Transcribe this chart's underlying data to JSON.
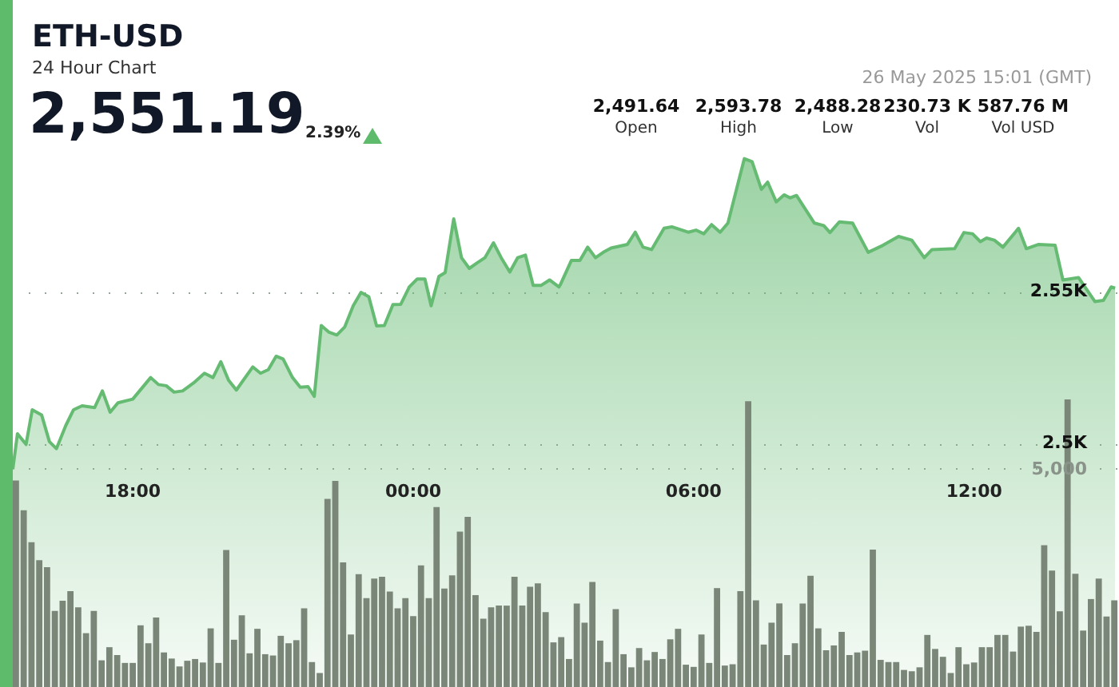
{
  "chart_data": {
    "type": "area",
    "title": "ETH-USD",
    "subtitle": "24 Hour Chart",
    "annotations": [
      "2,551.19",
      "2.39%",
      "26 May 2025 15:01 (GMT)",
      "2,491.64",
      "Open",
      "2,593.78",
      "High",
      "2,488.28",
      "Low",
      "230.73 K",
      "Vol",
      "587.76 M",
      "Vol USD"
    ],
    "xlim": [
      "2025-05-25T15:26",
      "2025-05-26T15:06"
    ],
    "xticks": [
      {
        "value": "2025-05-25T18:00",
        "label": "18:00"
      },
      {
        "value": "2025-05-26T00:00",
        "label": "00:00"
      },
      {
        "value": "2025-05-26T06:00",
        "label": "06:00"
      },
      {
        "value": "2025-05-26T12:00",
        "label": "12:00"
      }
    ],
    "ylim": [
      2420,
      2646
    ],
    "yticks": [
      {
        "value": 2500,
        "label": "2.5K"
      },
      {
        "value": 2550,
        "label": "2.55K"
      }
    ],
    "y2lim": [
      0,
      15700
    ],
    "y2ticks": [
      {
        "value": 5000,
        "label": "5,000"
      }
    ],
    "grid": "y",
    "series": [
      {
        "color": "#66bb73",
        "x": [
          "2025-05-25T15:26",
          "2025-05-25T15:32",
          "2025-05-25T15:43",
          "2025-05-25T15:51",
          "2025-05-25T16:03",
          "2025-05-25T16:13",
          "2025-05-25T16:22",
          "2025-05-25T16:34",
          "2025-05-25T16:44",
          "2025-05-25T16:55",
          "2025-05-25T17:11",
          "2025-05-25T17:21",
          "2025-05-25T17:31",
          "2025-05-25T17:41",
          "2025-05-25T18:00",
          "2025-05-25T18:23",
          "2025-05-25T18:33",
          "2025-05-25T18:43",
          "2025-05-25T18:53",
          "2025-05-25T19:04",
          "2025-05-25T19:18",
          "2025-05-25T19:32",
          "2025-05-25T19:43",
          "2025-05-25T19:53",
          "2025-05-25T20:03",
          "2025-05-25T20:13",
          "2025-05-25T20:34",
          "2025-05-25T20:44",
          "2025-05-25T20:54",
          "2025-05-25T21:04",
          "2025-05-25T21:13",
          "2025-05-25T21:25",
          "2025-05-25T21:35",
          "2025-05-25T21:45",
          "2025-05-25T21:53",
          "2025-05-25T22:02",
          "2025-05-25T22:12",
          "2025-05-25T22:22",
          "2025-05-25T22:32",
          "2025-05-25T22:43",
          "2025-05-25T22:53",
          "2025-05-25T23:03",
          "2025-05-25T23:13",
          "2025-05-25T23:23",
          "2025-05-25T23:34",
          "2025-05-25T23:44",
          "2025-05-25T23:55",
          "2025-05-26T00:05",
          "2025-05-26T00:15",
          "2025-05-26T00:23",
          "2025-05-26T00:33",
          "2025-05-26T00:41",
          "2025-05-26T00:52",
          "2025-05-26T01:02",
          "2025-05-26T01:12",
          "2025-05-26T01:22",
          "2025-05-26T01:32",
          "2025-05-26T01:43",
          "2025-05-26T01:53",
          "2025-05-26T02:04",
          "2025-05-26T02:14",
          "2025-05-26T02:24",
          "2025-05-26T02:34",
          "2025-05-26T02:44",
          "2025-05-26T02:55",
          "2025-05-26T03:07",
          "2025-05-26T03:09",
          "2025-05-26T03:23",
          "2025-05-26T03:34",
          "2025-05-26T03:44",
          "2025-05-26T03:54",
          "2025-05-26T04:04",
          "2025-05-26T04:14",
          "2025-05-26T04:35",
          "2025-05-26T04:45",
          "2025-05-26T04:55",
          "2025-05-26T05:06",
          "2025-05-26T05:22",
          "2025-05-26T05:32",
          "2025-05-26T05:53",
          "2025-05-26T06:03",
          "2025-05-26T06:13",
          "2025-05-26T06:23",
          "2025-05-26T06:34",
          "2025-05-26T06:44",
          "2025-05-26T07:05",
          "2025-05-26T07:15",
          "2025-05-26T07:27",
          "2025-05-26T07:35",
          "2025-05-26T07:46",
          "2025-05-26T07:56",
          "2025-05-26T08:04",
          "2025-05-26T08:12",
          "2025-05-26T08:35",
          "2025-05-26T08:47",
          "2025-05-26T08:55",
          "2025-05-26T09:07",
          "2025-05-26T09:24",
          "2025-05-26T09:44",
          "2025-05-26T10:03",
          "2025-05-26T10:23",
          "2025-05-26T10:40",
          "2025-05-26T10:56",
          "2025-05-26T11:06",
          "2025-05-26T11:35",
          "2025-05-26T11:47",
          "2025-05-26T11:58",
          "2025-05-26T12:08",
          "2025-05-26T12:16",
          "2025-05-26T12:26",
          "2025-05-26T12:37",
          "2025-05-26T12:57",
          "2025-05-26T13:07",
          "2025-05-26T13:23",
          "2025-05-26T13:44",
          "2025-05-26T13:54",
          "2025-05-26T14:14",
          "2025-05-26T14:35",
          "2025-05-26T14:46",
          "2025-05-26T14:56",
          "2025-05-26T15:01"
        ],
        "values": [
          2491.6,
          2503.3,
          2499.8,
          2511.2,
          2509.5,
          2500.7,
          2498.4,
          2506,
          2511.2,
          2512.5,
          2511.9,
          2517.4,
          2510.4,
          2513.5,
          2514.7,
          2521.8,
          2519.5,
          2519.1,
          2517,
          2517.4,
          2520,
          2523.2,
          2521.8,
          2527,
          2520.9,
          2517.7,
          2525.3,
          2523.2,
          2524.4,
          2528.8,
          2527.9,
          2521.8,
          2518.6,
          2518.8,
          2515.6,
          2538.9,
          2536.7,
          2535.8,
          2538.4,
          2545.4,
          2549.8,
          2548.4,
          2538.8,
          2538.9,
          2545.8,
          2545.9,
          2551.6,
          2554.2,
          2554.2,
          2545.4,
          2555.1,
          2556.3,
          2574,
          2561.2,
          2557.7,
          2559.5,
          2561.2,
          2566.1,
          2561.2,
          2556.5,
          2561.2,
          2562.1,
          2552.1,
          2552.1,
          2553.9,
          2551.6,
          2552.4,
          2560.3,
          2560.3,
          2564.7,
          2561.2,
          2563,
          2564.4,
          2565.6,
          2569.6,
          2564.7,
          2563.9,
          2570.9,
          2571.4,
          2569.6,
          2570.3,
          2569.1,
          2572.1,
          2569.6,
          2572.6,
          2593.8,
          2592.8,
          2583.7,
          2586.1,
          2579.6,
          2581.9,
          2580.9,
          2581.7,
          2572.6,
          2571.8,
          2569.5,
          2573,
          2572.6,
          2563,
          2565.3,
          2568.2,
          2567,
          2561.2,
          2563.9,
          2564.2,
          2569.5,
          2569.1,
          2566.5,
          2567.7,
          2567,
          2564.7,
          2570.9,
          2564.2,
          2565.6,
          2565.3,
          2553.9,
          2554.7,
          2546.8,
          2547.2,
          2551.6,
          2551.2
        ]
      },
      {
        "type": "bar",
        "axis": "y2",
        "color": "#7a8677",
        "x": [
          "2025-05-25T15:30",
          "2025-05-25T15:40",
          "2025-05-25T15:50",
          "2025-05-25T16:00",
          "2025-05-25T16:10",
          "2025-05-25T16:20",
          "2025-05-25T16:30",
          "2025-05-25T16:40",
          "2025-05-25T16:50",
          "2025-05-25T17:00",
          "2025-05-25T17:10",
          "2025-05-25T17:20",
          "2025-05-25T17:30",
          "2025-05-25T17:40",
          "2025-05-25T17:50",
          "2025-05-25T18:00",
          "2025-05-25T18:10",
          "2025-05-25T18:20",
          "2025-05-25T18:30",
          "2025-05-25T18:40",
          "2025-05-25T18:50",
          "2025-05-25T19:00",
          "2025-05-25T19:10",
          "2025-05-25T19:20",
          "2025-05-25T19:30",
          "2025-05-25T19:40",
          "2025-05-25T19:50",
          "2025-05-25T20:00",
          "2025-05-25T20:10",
          "2025-05-25T20:20",
          "2025-05-25T20:30",
          "2025-05-25T20:40",
          "2025-05-25T20:50",
          "2025-05-25T21:00",
          "2025-05-25T21:10",
          "2025-05-25T21:20",
          "2025-05-25T21:30",
          "2025-05-25T21:40",
          "2025-05-25T21:50",
          "2025-05-25T22:00",
          "2025-05-25T22:10",
          "2025-05-25T22:20",
          "2025-05-25T22:30",
          "2025-05-25T22:40",
          "2025-05-25T22:50",
          "2025-05-25T23:00",
          "2025-05-25T23:10",
          "2025-05-25T23:20",
          "2025-05-25T23:30",
          "2025-05-25T23:40",
          "2025-05-25T23:50",
          "2025-05-26T00:00",
          "2025-05-26T00:10",
          "2025-05-26T00:20",
          "2025-05-26T00:30",
          "2025-05-26T00:40",
          "2025-05-26T00:50",
          "2025-05-26T01:00",
          "2025-05-26T01:10",
          "2025-05-26T01:20",
          "2025-05-26T01:30",
          "2025-05-26T01:40",
          "2025-05-26T01:50",
          "2025-05-26T02:00",
          "2025-05-26T02:10",
          "2025-05-26T02:20",
          "2025-05-26T02:30",
          "2025-05-26T02:40",
          "2025-05-26T02:50",
          "2025-05-26T03:00",
          "2025-05-26T03:10",
          "2025-05-26T03:20",
          "2025-05-26T03:30",
          "2025-05-26T03:40",
          "2025-05-26T03:50",
          "2025-05-26T04:00",
          "2025-05-26T04:10",
          "2025-05-26T04:20",
          "2025-05-26T04:30",
          "2025-05-26T04:40",
          "2025-05-26T04:50",
          "2025-05-26T05:00",
          "2025-05-26T05:10",
          "2025-05-26T05:20",
          "2025-05-26T05:30",
          "2025-05-26T05:40",
          "2025-05-26T05:50",
          "2025-05-26T06:00",
          "2025-05-26T06:10",
          "2025-05-26T06:20",
          "2025-05-26T06:30",
          "2025-05-26T06:40",
          "2025-05-26T06:50",
          "2025-05-26T07:00",
          "2025-05-26T07:10",
          "2025-05-26T07:20",
          "2025-05-26T07:30",
          "2025-05-26T07:40",
          "2025-05-26T07:50",
          "2025-05-26T08:00",
          "2025-05-26T08:10",
          "2025-05-26T08:20",
          "2025-05-26T08:30",
          "2025-05-26T08:40",
          "2025-05-26T08:50",
          "2025-05-26T09:00",
          "2025-05-26T09:10",
          "2025-05-26T09:20",
          "2025-05-26T09:30",
          "2025-05-26T09:40",
          "2025-05-26T09:50",
          "2025-05-26T10:00",
          "2025-05-26T10:10",
          "2025-05-26T10:20",
          "2025-05-26T10:30",
          "2025-05-26T10:40",
          "2025-05-26T10:50",
          "2025-05-26T11:00",
          "2025-05-26T11:10",
          "2025-05-26T11:20",
          "2025-05-26T11:30",
          "2025-05-26T11:40",
          "2025-05-26T11:50",
          "2025-05-26T12:00",
          "2025-05-26T12:10",
          "2025-05-26T12:20",
          "2025-05-26T12:30",
          "2025-05-26T12:40",
          "2025-05-26T12:50",
          "2025-05-26T13:00",
          "2025-05-26T13:10",
          "2025-05-26T13:20",
          "2025-05-26T13:30",
          "2025-05-26T13:40",
          "2025-05-26T13:50",
          "2025-05-26T14:00",
          "2025-05-26T14:10",
          "2025-05-26T14:20",
          "2025-05-26T14:30",
          "2025-05-26T14:40",
          "2025-05-26T14:50",
          "2025-05-26T15:00"
        ],
        "values": [
          4720,
          4040,
          3310,
          2900,
          2740,
          1740,
          1970,
          2190,
          1820,
          1230,
          1740,
          610,
          910,
          730,
          550,
          550,
          1410,
          1000,
          1590,
          790,
          650,
          470,
          600,
          640,
          560,
          1340,
          550,
          3130,
          1080,
          1640,
          770,
          1330,
          750,
          720,
          1170,
          1000,
          1070,
          1800,
          570,
          320,
          4300,
          4710,
          2850,
          1200,
          2580,
          2030,
          2480,
          2520,
          2180,
          1800,
          2030,
          1620,
          2780,
          2030,
          4110,
          2250,
          2550,
          3550,
          3890,
          2100,
          1560,
          1820,
          1860,
          1860,
          2520,
          1860,
          2290,
          2370,
          1710,
          1020,
          1140,
          640,
          1910,
          1470,
          2400,
          1060,
          570,
          1780,
          750,
          450,
          890,
          610,
          800,
          640,
          1090,
          1330,
          510,
          460,
          1200,
          550,
          2260,
          490,
          520,
          2190,
          6530,
          1980,
          970,
          1470,
          1910,
          730,
          1000,
          1910,
          2540,
          1340,
          840,
          950,
          1260,
          730,
          790,
          830,
          3140,
          620,
          570,
          570,
          390,
          360,
          450,
          1190,
          870,
          690,
          320,
          910,
          520,
          560,
          910,
          910,
          1190,
          1190,
          810,
          1380,
          1400,
          1260,
          3240,
          2660,
          1730,
          6570,
          2590,
          1290,
          2010,
          2480,
          1610,
          1980
        ]
      }
    ]
  }
}
